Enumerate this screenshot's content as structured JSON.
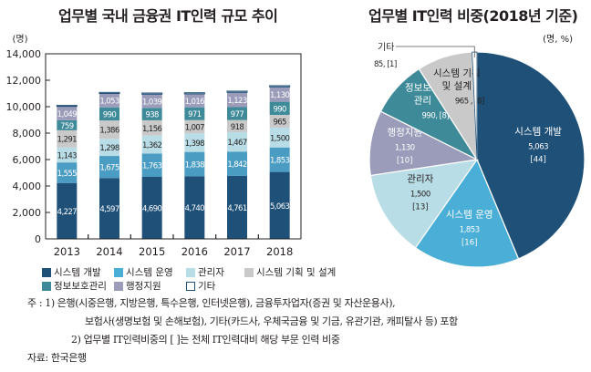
{
  "chart_data": [
    {
      "type": "bar",
      "stacked": true,
      "title": "업무별 국내 금융권 IT인력 규모 추이",
      "ylabel": "(명)",
      "xlabel": "",
      "ylim": [
        0,
        14000
      ],
      "yticks": [
        "0",
        "2,000",
        "4,000",
        "6,000",
        "8,000",
        "10,000",
        "12,000",
        "14,000"
      ],
      "ytick_values": [
        0,
        2000,
        4000,
        6000,
        8000,
        10000,
        12000,
        14000
      ],
      "categories": [
        "2013",
        "2014",
        "2015",
        "2016",
        "2017",
        "2018"
      ],
      "series": [
        {
          "name": "시스템 개발",
          "color": "#1f5078",
          "label_color": "#ffffff",
          "values": [
            4227,
            4597,
            4690,
            4740,
            4761,
            5063
          ],
          "labels": [
            "4,227",
            "4,597",
            "4,690",
            "4,740",
            "4,761",
            "5,063"
          ]
        },
        {
          "name": "시스템 운영",
          "color": "#4a9cc2",
          "label_color": "#ffffff",
          "values": [
            1555,
            1675,
            1763,
            1838,
            1842,
            1853
          ],
          "labels": [
            "1,555",
            "1,675",
            "1,763",
            "1,838",
            "1,842",
            "1,853"
          ]
        },
        {
          "name": "관리자",
          "color": "#b9dde6",
          "label_color": "#231f20",
          "values": [
            1143,
            1298,
            1362,
            1398,
            1467,
            1500
          ],
          "labels": [
            "1,143",
            "1,298",
            "1,362",
            "1,398",
            "1,467",
            "1,500"
          ]
        },
        {
          "name": "시스템 기획 및 설계",
          "color": "#c9c9c9",
          "label_color": "#231f20",
          "values": [
            1291,
            1386,
            1156,
            1007,
            918,
            965
          ],
          "labels": [
            "1,291",
            "1,386",
            "1,156",
            "1,007",
            "918",
            "965"
          ]
        },
        {
          "name": "정보보호관리",
          "color": "#3f8a99",
          "label_color": "#ffffff",
          "values": [
            759,
            990,
            938,
            971,
            977,
            990
          ],
          "labels": [
            "759",
            "990",
            "938",
            "971",
            "977",
            "990"
          ]
        },
        {
          "name": "행정지원",
          "color": "#9a9cb9",
          "label_color": "#ffffff",
          "values": [
            1049,
            1053,
            1039,
            1016,
            1123,
            1130
          ],
          "labels": [
            "1,049",
            "1,053",
            "1,039",
            "1,016",
            "1,123",
            "1,130"
          ]
        },
        {
          "name": "기타",
          "color": "#ffffff",
          "border": "#1f5078",
          "label_color": "#231f20",
          "values": [
            70,
            80,
            85,
            85,
            85,
            85
          ],
          "labels": [
            "",
            "",
            "",
            "",
            "",
            ""
          ]
        }
      ],
      "legend": {
        "placement": "bottom",
        "rows": [
          [
            {
              "name": "시스템 개발",
              "color": "#1f5078"
            },
            {
              "name": "시스템 운영",
              "color": "#4aaed6"
            },
            {
              "name": "관리자",
              "color": "#b9dde6"
            },
            {
              "name": "시스템 기획 및 설계",
              "color": "#c9c9c9"
            }
          ],
          [
            {
              "name": "정보보호관리",
              "color": "#3f8a99"
            },
            {
              "name": "행정지원",
              "color": "#9a9cb9"
            },
            {
              "name": "기타",
              "color": "#ffffff",
              "border": "#1f5078"
            }
          ]
        ]
      }
    },
    {
      "type": "pie",
      "title": "업무별 IT인력 비중(2018년 기준)",
      "unit_label": "(명, %)",
      "start": "top",
      "direction": "clockwise",
      "slices": [
        {
          "name": "시스템 개발",
          "value": 5063,
          "percent": 44,
          "value_label": "5,063",
          "percent_label": "[44]",
          "color": "#1f5078",
          "text_color": "#ffffff"
        },
        {
          "name": "시스템 운영",
          "value": 1853,
          "percent": 16,
          "value_label": "1,853",
          "percent_label": "[16]",
          "color": "#4aaed6",
          "text_color": "#ffffff"
        },
        {
          "name": "관리자",
          "value": 1500,
          "percent": 13,
          "value_label": "1,500",
          "percent_label": "[13]",
          "color": "#b9dde6",
          "text_color": "#231f20"
        },
        {
          "name": "행정지원",
          "value": 1130,
          "percent": 10,
          "value_label": "1,130",
          "percent_label": "[10]",
          "color": "#9a9cb9",
          "text_color": "#ffffff"
        },
        {
          "name": "정보보호관리",
          "name_lines": [
            "정보보호",
            "관리"
          ],
          "value": 990,
          "percent": 8,
          "value_label": "990, [8]",
          "percent_label": "",
          "color": "#3f8a99",
          "text_color": "#ffffff"
        },
        {
          "name": "시스템 기획 및 설계",
          "name_lines": [
            "시스템 기획",
            "및 설계"
          ],
          "value": 965,
          "percent": 8,
          "value_label": "965 , [8]",
          "percent_label": "",
          "color": "#c9c9c9",
          "text_color": "#231f20"
        },
        {
          "name": "기타",
          "value": 85,
          "percent": 1,
          "value_label": "85, [1]",
          "percent_label": "",
          "color": "#ffffff",
          "text_color": "#231f20",
          "callout": true
        }
      ]
    }
  ],
  "notes": {
    "line1": "주   : 1) 은행(시중은행, 지방은행, 특수은행, 인터넷은행), 금융투자업자(증권 및 자산운용사),",
    "line2": "보험사(생명보험 및 손해보험), 기타(카드사, 우체국금융 및 기금, 유관기관, 캐피탈사 등) 포함",
    "line3": "2) 업무별 IT인력비중의 [ ]는 전체 IT인력대비 해당 부문 인력 비중",
    "source": "자료: 한국은행"
  }
}
